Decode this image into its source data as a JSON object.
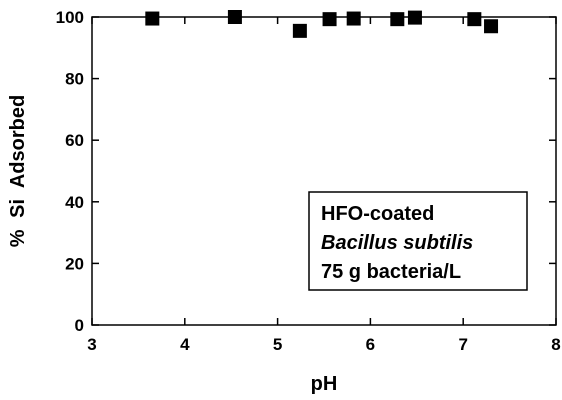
{
  "chart_data": {
    "type": "scatter",
    "x_label": "pH",
    "y_label": "% Si Adsorbed",
    "annotation": [
      "HFO-coated",
      "Bacillus subtilis",
      "75 g bacteria/L"
    ],
    "series": [
      {
        "color": "#000000",
        "x": [
          3.65,
          4.54,
          5.24,
          5.56,
          5.82,
          6.29,
          6.48,
          7.12,
          7.3
        ],
        "values": [
          99.5,
          100,
          95.5,
          99.3,
          99.5,
          99.3,
          99.8,
          99.3,
          97
        ]
      }
    ],
    "xlim": [
      3,
      8
    ],
    "xticks": [
      3,
      4,
      5,
      6,
      7,
      8
    ],
    "ylim": [
      0,
      100
    ],
    "yticks": [
      0,
      20,
      40,
      60,
      80,
      100
    ]
  }
}
